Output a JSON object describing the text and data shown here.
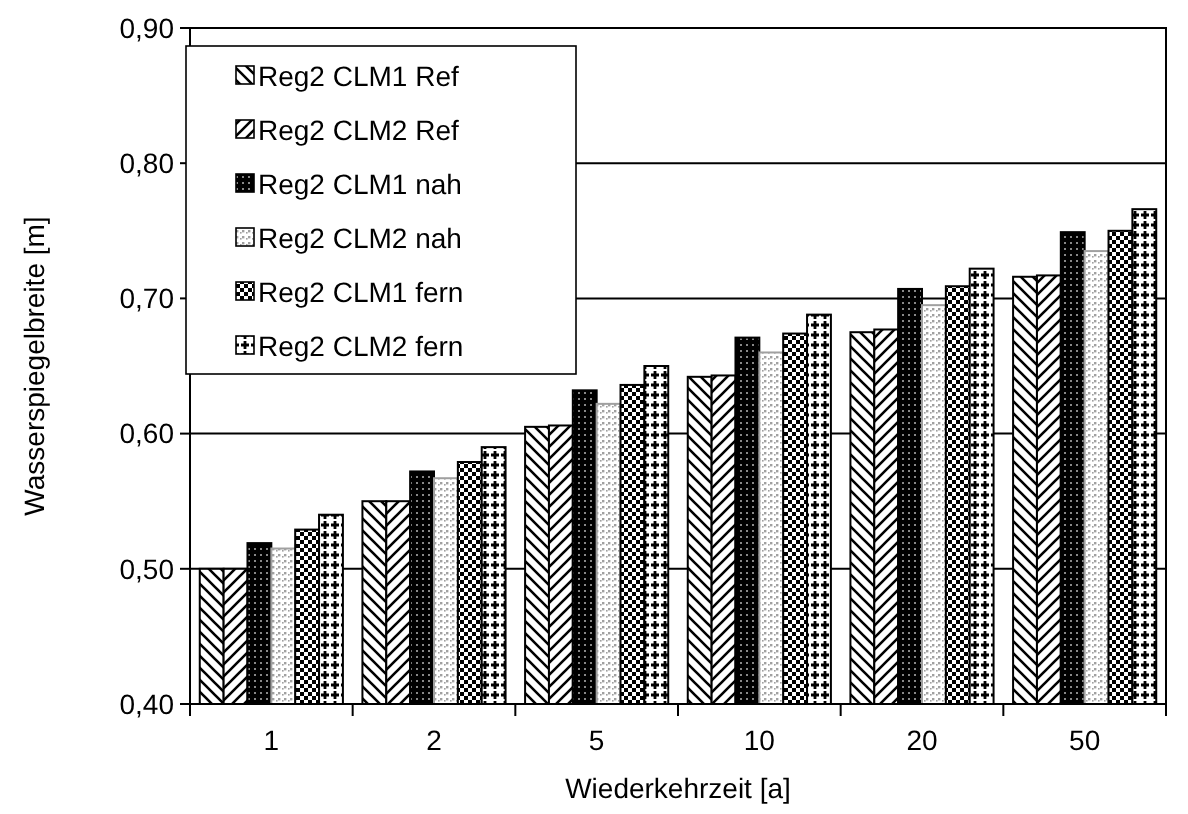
{
  "chart_data": {
    "type": "bar",
    "xlabel": "Wiederkehrzeit [a]",
    "ylabel": "Wasserspiegelbreite [m]",
    "categories": [
      "1",
      "2",
      "5",
      "10",
      "20",
      "50"
    ],
    "series": [
      {
        "name": "Reg2 CLM1 Ref",
        "color": "#000000",
        "values": [
          0.5,
          0.55,
          0.605,
          0.642,
          0.675,
          0.716
        ]
      },
      {
        "name": "Reg2 CLM2 Ref",
        "color": "#000000",
        "values": [
          0.5,
          0.55,
          0.606,
          0.643,
          0.677,
          0.717
        ]
      },
      {
        "name": "Reg2 CLM1 nah",
        "color": "#000000",
        "values": [
          0.519,
          0.572,
          0.632,
          0.671,
          0.707,
          0.749
        ]
      },
      {
        "name": "Reg2 CLM2 nah",
        "color": "#a0a0a0",
        "values": [
          0.515,
          0.567,
          0.622,
          0.66,
          0.695,
          0.735
        ]
      },
      {
        "name": "Reg2 CLM1 fern",
        "color": "#000000",
        "values": [
          0.529,
          0.579,
          0.636,
          0.674,
          0.709,
          0.75
        ]
      },
      {
        "name": "Reg2 CLM2 fern",
        "color": "#000000",
        "values": [
          0.54,
          0.59,
          0.65,
          0.688,
          0.722,
          0.766
        ]
      }
    ],
    "ylim": [
      0.4,
      0.9
    ],
    "yticks": [
      {
        "value": 0.4,
        "label": "0,40"
      },
      {
        "value": 0.5,
        "label": "0,50"
      },
      {
        "value": 0.6,
        "label": "0,60"
      },
      {
        "value": 0.7,
        "label": "0,70"
      },
      {
        "value": 0.8,
        "label": "0,80"
      },
      {
        "value": 0.9,
        "label": "0,90"
      }
    ],
    "grid": "y",
    "legend": "top left"
  }
}
